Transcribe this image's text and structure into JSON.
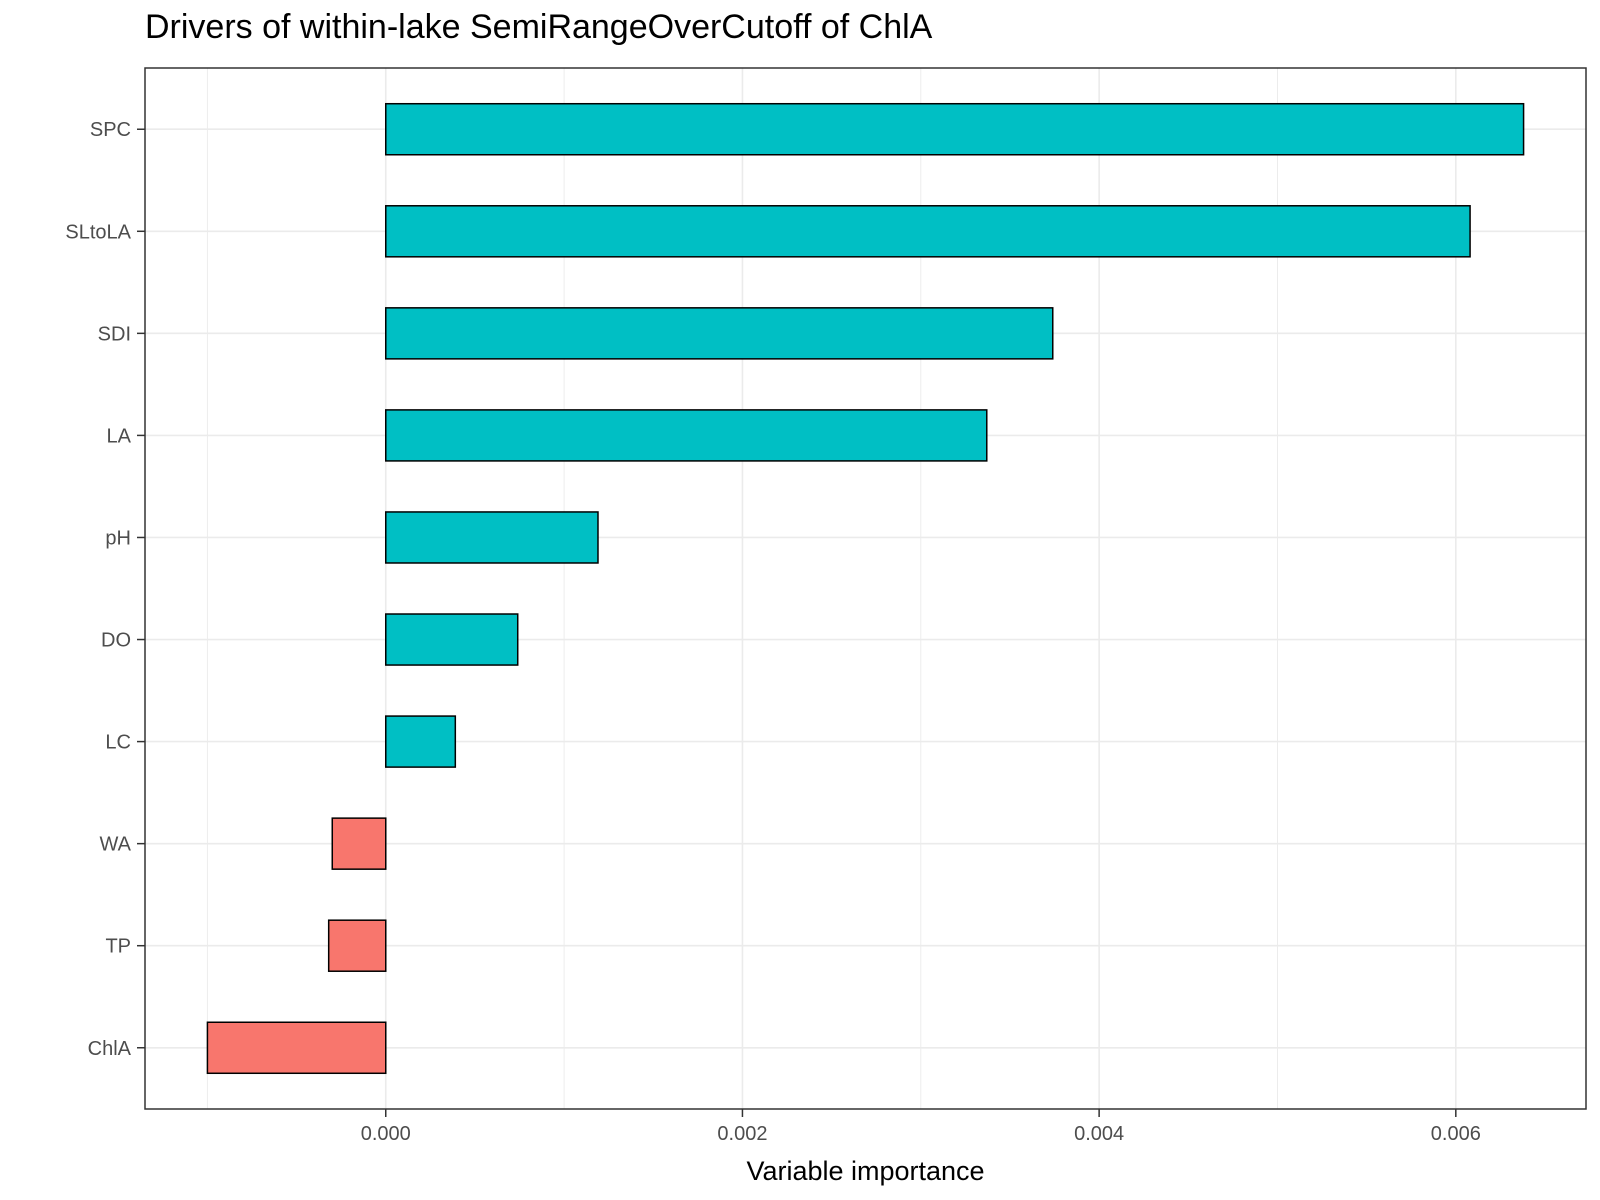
{
  "chart_data": {
    "type": "bar",
    "orientation": "horizontal",
    "title": "Drivers of within-lake SemiRangeOverCutoff of ChlA",
    "xlabel": "Variable importance",
    "ylabel": "",
    "categories": [
      "SPC",
      "SLtoLA",
      "SDI",
      "LA",
      "pH",
      "DO",
      "LC",
      "WA",
      "TP",
      "ChlA"
    ],
    "values": [
      0.00638,
      0.00608,
      0.00374,
      0.00337,
      0.00119,
      0.00074,
      0.00039,
      -0.0003,
      -0.00032,
      -0.001
    ],
    "xlim": [
      -0.00135,
      0.00673
    ],
    "xticks": [
      0.0,
      0.002,
      0.004,
      0.006
    ],
    "xtick_labels": [
      "0.000",
      "0.002",
      "0.004",
      "0.006"
    ],
    "grid": true,
    "legend": "none",
    "colors": {
      "positive": "#00BFC4",
      "negative": "#F8766D",
      "outline": "#000000",
      "grid": "#ebebeb",
      "panel_border": "#333333"
    }
  }
}
